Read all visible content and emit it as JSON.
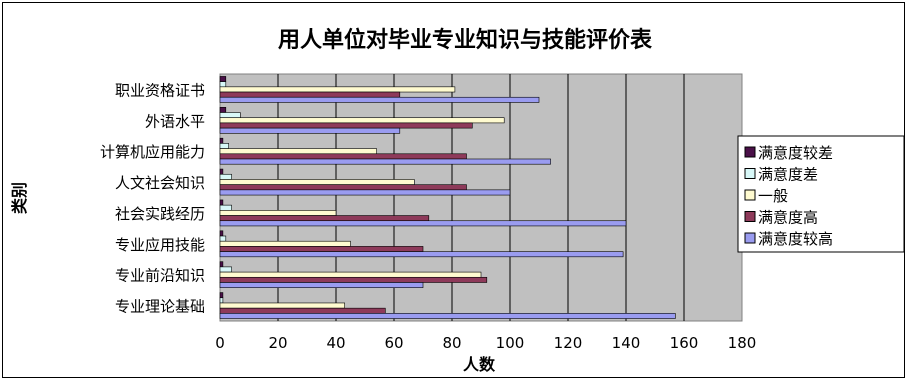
{
  "chart_data": {
    "type": "bar",
    "orientation": "horizontal",
    "title": "用人单位对毕业专业知识与技能评价表",
    "xlabel": "人数",
    "ylabel": "类别",
    "xlim": [
      0,
      180
    ],
    "x_ticks": [
      "0",
      "20",
      "40",
      "60",
      "80",
      "100",
      "120",
      "140",
      "160",
      "180"
    ],
    "grid": "vertical",
    "legend_position": "right",
    "categories": [
      "职业资格证书",
      "外语水平",
      "计算机应用能力",
      "人文社会知识",
      "社会实践经历",
      "专业应用技能",
      "专业前沿知识",
      "专业理论基础"
    ],
    "series": [
      {
        "name": "满意度较差",
        "color": "#4a1048",
        "values": [
          2,
          2,
          1,
          1,
          1,
          1,
          1,
          1
        ]
      },
      {
        "name": "满意度差",
        "color": "#d8f8f8",
        "values": [
          2,
          7,
          3,
          4,
          4,
          2,
          4,
          1
        ]
      },
      {
        "name": "一般",
        "color": "#fffbd0",
        "values": [
          81,
          98,
          54,
          67,
          40,
          45,
          90,
          43
        ]
      },
      {
        "name": "满意度高",
        "color": "#8e3a5a",
        "values": [
          62,
          87,
          85,
          85,
          72,
          70,
          92,
          57
        ]
      },
      {
        "name": "满意度较高",
        "color": "#9a9cf0",
        "values": [
          110,
          62,
          114,
          100,
          140,
          139,
          70,
          157
        ]
      }
    ]
  }
}
